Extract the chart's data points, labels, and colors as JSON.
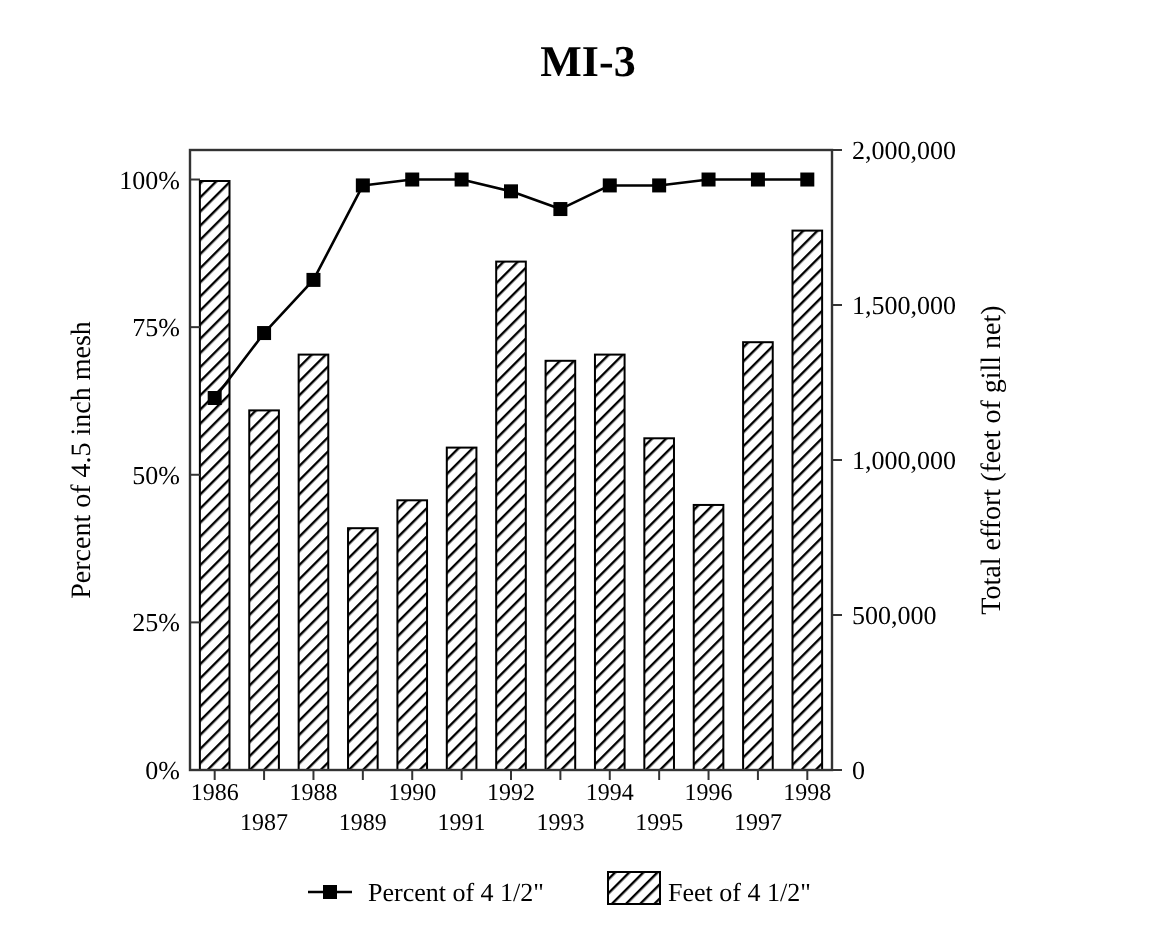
{
  "chart_data": {
    "type": "bar",
    "title": "MI-3",
    "categories": [
      "1986",
      "1987",
      "1988",
      "1989",
      "1990",
      "1991",
      "1992",
      "1993",
      "1994",
      "1995",
      "1996",
      "1997",
      "1998"
    ],
    "series": [
      {
        "name": "Percent of 4 1/2\"",
        "type": "line",
        "color": "#000000",
        "marker": "square",
        "values": [
          63,
          74,
          83,
          99,
          100,
          100,
          98,
          95,
          99,
          99,
          100,
          100,
          100
        ]
      },
      {
        "name": "Feet of 4 1/2\"",
        "axis": "y2",
        "color": "#000000",
        "values": [
          1900000,
          1160000,
          1340000,
          780000,
          870000,
          1040000,
          1640000,
          1320000,
          1340000,
          1070000,
          855000,
          1380000,
          1740000
        ]
      }
    ],
    "ylabel": "Percent of 4.5 inch mesh",
    "y2label": "Total effort (feet of gill net)",
    "ylim": [
      0,
      105
    ],
    "yticks": [
      {
        "value": 0,
        "label": "0%"
      },
      {
        "value": 25,
        "label": "25%"
      },
      {
        "value": 50,
        "label": "50%"
      },
      {
        "value": 75,
        "label": "75%"
      },
      {
        "value": 100,
        "label": "100%"
      }
    ],
    "y2lim": [
      0,
      2000000
    ],
    "y2ticks": [
      {
        "value": 0,
        "label": "0"
      },
      {
        "value": 500000,
        "label": "500,000"
      },
      {
        "value": 1000000,
        "label": "1,000,000"
      },
      {
        "value": 1500000,
        "label": "1,500,000"
      },
      {
        "value": 2000000,
        "label": "2,000,000"
      }
    ],
    "grid": false,
    "legend": "bottom"
  }
}
